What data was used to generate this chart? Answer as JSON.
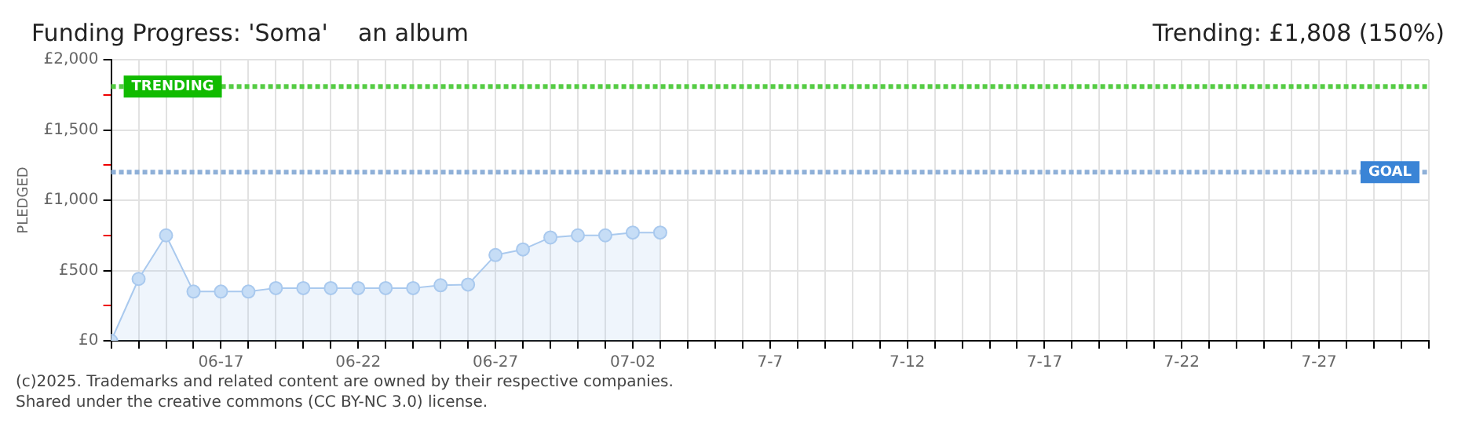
{
  "chart_data": {
    "type": "area",
    "title": "Funding Progress: 'Soma'    an album",
    "subtitle": "Trending: £1,808 (150%)",
    "ylabel": "PLEDGED",
    "annotations": [
      "(c)2025. Trademarks and related content are owned by their respective companies.",
      "Shared under the creative commons (CC BY-NC 3.0) license."
    ],
    "x": [
      "--06-13",
      "--06-14",
      "--06-15",
      "--06-16",
      "--06-17",
      "--06-18",
      "--06-19",
      "--06-20",
      "--06-21",
      "--06-22",
      "--06-23",
      "--06-24",
      "--06-25",
      "--06-26",
      "--06-27",
      "--06-28",
      "--06-29",
      "--06-30",
      "--07-01",
      "--07-02",
      "--07-03"
    ],
    "series": [
      {
        "color": "#a9c9ee",
        "values": [
          0,
          440,
          750,
          350,
          350,
          350,
          375,
          375,
          375,
          375,
          375,
          375,
          395,
          400,
          610,
          650,
          735,
          750,
          750,
          770,
          770
        ]
      }
    ],
    "marker": "circle",
    "grid": true,
    "legend": false,
    "ylim": [
      0,
      2000
    ],
    "yticks": [
      {
        "value": 0,
        "label": "£0"
      },
      {
        "value": 250,
        "label": null
      },
      {
        "value": 500,
        "label": "£500"
      },
      {
        "value": 750,
        "label": null
      },
      {
        "value": 1000,
        "label": "£1,000"
      },
      {
        "value": 1250,
        "label": null
      },
      {
        "value": 1500,
        "label": "£1,500"
      },
      {
        "value": 1750,
        "label": null
      },
      {
        "value": 2000,
        "label": "£2,000"
      }
    ],
    "xlim": [
      "--06-13",
      "--07-31"
    ],
    "xticks": [
      {
        "value": "--06-13",
        "label": null
      },
      {
        "value": "--06-14",
        "label": null
      },
      {
        "value": "--06-15",
        "label": null
      },
      {
        "value": "--06-16",
        "label": null
      },
      {
        "value": "--06-17",
        "label": "06-17"
      },
      {
        "value": "--06-18",
        "label": null
      },
      {
        "value": "--06-19",
        "label": null
      },
      {
        "value": "--06-20",
        "label": null
      },
      {
        "value": "--06-21",
        "label": null
      },
      {
        "value": "--06-22",
        "label": "06-22"
      },
      {
        "value": "--06-23",
        "label": null
      },
      {
        "value": "--06-24",
        "label": null
      },
      {
        "value": "--06-25",
        "label": null
      },
      {
        "value": "--06-26",
        "label": null
      },
      {
        "value": "--06-27",
        "label": "06-27"
      },
      {
        "value": "--06-28",
        "label": null
      },
      {
        "value": "--06-29",
        "label": null
      },
      {
        "value": "--06-30",
        "label": null
      },
      {
        "value": "--07-01",
        "label": null
      },
      {
        "value": "--07-02",
        "label": "07-02"
      },
      {
        "value": "--07-03",
        "label": null
      },
      {
        "value": "--07-04",
        "label": null
      },
      {
        "value": "--07-05",
        "label": null
      },
      {
        "value": "--07-06",
        "label": null
      },
      {
        "value": "--07-07",
        "label": "7-7"
      },
      {
        "value": "--07-08",
        "label": null
      },
      {
        "value": "--07-09",
        "label": null
      },
      {
        "value": "--07-10",
        "label": null
      },
      {
        "value": "--07-11",
        "label": null
      },
      {
        "value": "--07-12",
        "label": "7-12"
      },
      {
        "value": "--07-13",
        "label": null
      },
      {
        "value": "--07-14",
        "label": null
      },
      {
        "value": "--07-15",
        "label": null
      },
      {
        "value": "--07-16",
        "label": null
      },
      {
        "value": "--07-17",
        "label": "7-17"
      },
      {
        "value": "--07-18",
        "label": null
      },
      {
        "value": "--07-19",
        "label": null
      },
      {
        "value": "--07-20",
        "label": null
      },
      {
        "value": "--07-21",
        "label": null
      },
      {
        "value": "--07-22",
        "label": "7-22"
      },
      {
        "value": "--07-23",
        "label": null
      },
      {
        "value": "--07-24",
        "label": null
      },
      {
        "value": "--07-25",
        "label": null
      },
      {
        "value": "--07-26",
        "label": null
      },
      {
        "value": "--07-27",
        "label": "7-27"
      },
      {
        "value": "--07-28",
        "label": null
      },
      {
        "value": "--07-29",
        "label": null
      },
      {
        "value": "--07-30",
        "label": null
      },
      {
        "value": "--07-31",
        "label": null
      }
    ],
    "ref_lines": [
      {
        "axis": "y",
        "value": 1808,
        "label": "TRENDING",
        "color": "#55cc44",
        "line_style": "dotted"
      },
      {
        "axis": "y",
        "value": 1200,
        "label": "GOAL",
        "color": "#8fb0d8",
        "line_style": "dotted"
      }
    ]
  }
}
